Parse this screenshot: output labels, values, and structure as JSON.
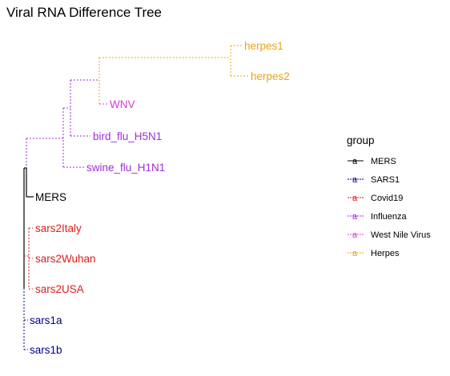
{
  "title": "Viral RNA Difference Tree",
  "colors": {
    "MERS": "#000000",
    "SARS1": "#00008b",
    "Covid19": "#dd1c1c",
    "Influenza": "#a02cdc",
    "WNV": "#d43cd8",
    "Herpes": "#e8a418"
  },
  "tips": [
    {
      "label": "herpes1",
      "group": "Herpes"
    },
    {
      "label": "herpes2",
      "group": "Herpes"
    },
    {
      "label": "WNV",
      "group": "West Nile Virus"
    },
    {
      "label": "bird_flu_H5N1",
      "group": "Influenza"
    },
    {
      "label": "swine_flu_H1N1",
      "group": "Influenza"
    },
    {
      "label": "MERS",
      "group": "MERS"
    },
    {
      "label": "sars2Italy",
      "group": "Covid19"
    },
    {
      "label": "sars2Wuhan",
      "group": "Covid19"
    },
    {
      "label": "sars2USA",
      "group": "Covid19"
    },
    {
      "label": "sars1a",
      "group": "SARS1"
    },
    {
      "label": "sars1b",
      "group": "SARS1"
    }
  ],
  "legend": {
    "title": "group",
    "key_glyph": "a",
    "items": [
      {
        "label": "MERS",
        "color": "#000000"
      },
      {
        "label": "SARS1",
        "color": "#00008b"
      },
      {
        "label": "Covid19",
        "color": "#dd1c1c"
      },
      {
        "label": "Influenza",
        "color": "#a02cdc"
      },
      {
        "label": "West Nile Virus",
        "color": "#d43cd8"
      },
      {
        "label": "Herpes",
        "color": "#e8a418"
      }
    ]
  }
}
